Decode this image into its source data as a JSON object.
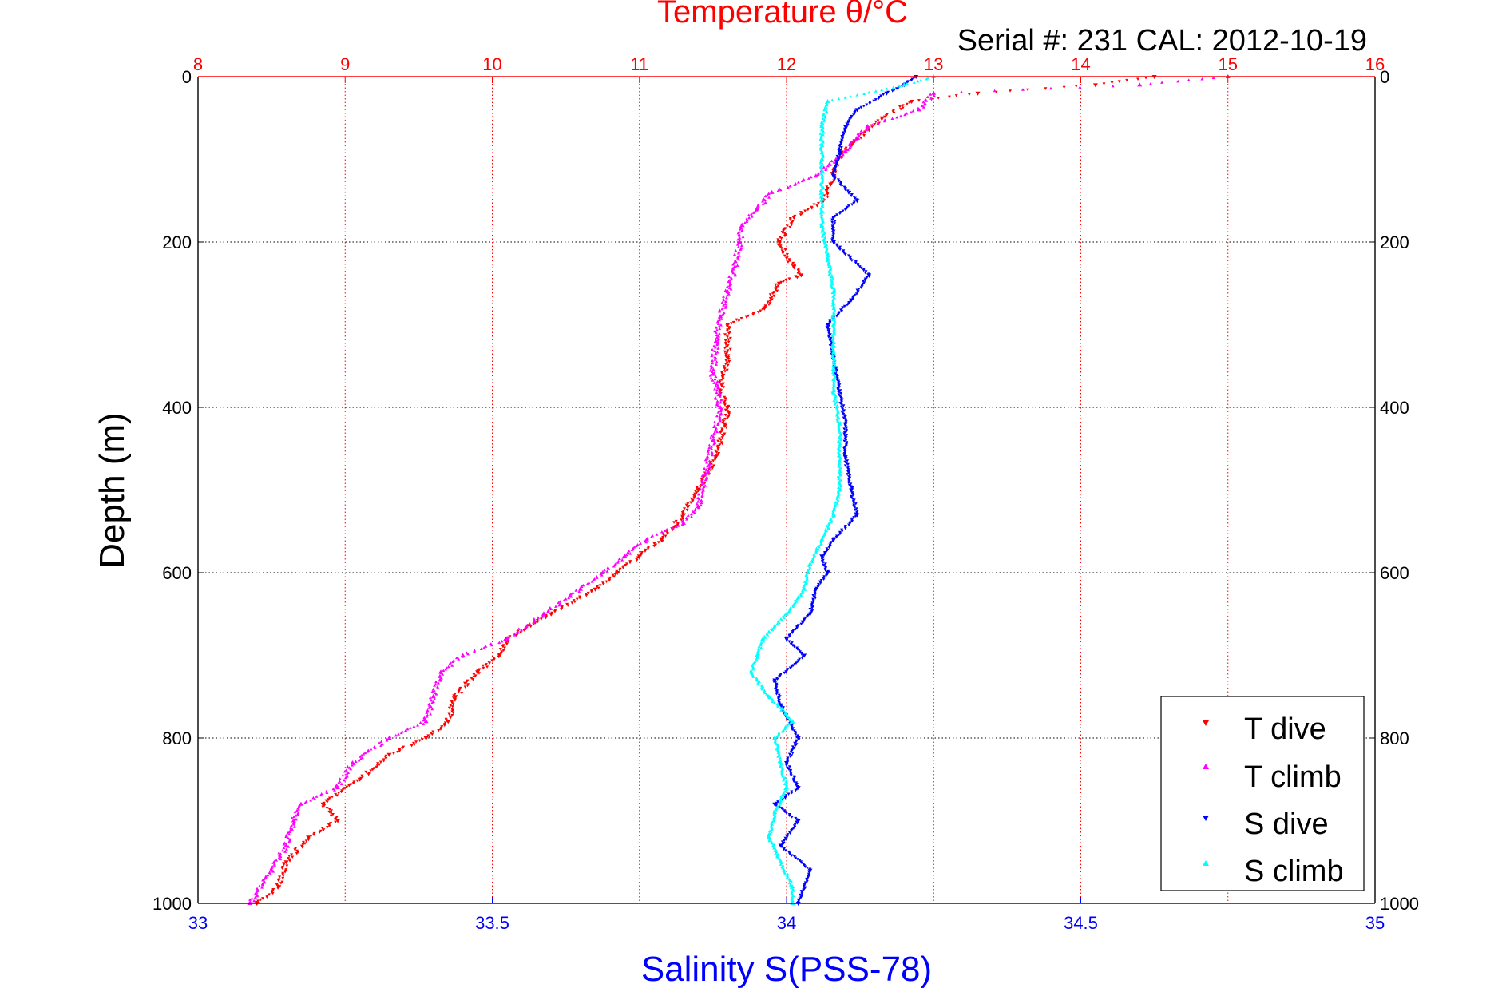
{
  "chart_data": {
    "type": "scatter",
    "title": "Temperature θ/°C",
    "subtitle": "Serial #: 231  CAL: 2012-10-19",
    "ylabel": "Depth (m)",
    "xlabel": "Salinity S(PSS-78)",
    "grid": true,
    "legend_position": "bottom-right",
    "ylim": [
      0,
      1000
    ],
    "y_reversed": true,
    "yticks": [
      0,
      200,
      400,
      600,
      800,
      1000
    ],
    "temperature_axis": {
      "position": "top",
      "xlim": [
        8,
        16
      ],
      "ticks": [
        8,
        9,
        10,
        11,
        12,
        13,
        14,
        15,
        16
      ],
      "color": "#ff0000"
    },
    "salinity_axis": {
      "position": "bottom",
      "xlim": [
        33,
        35
      ],
      "ticks": [
        "33",
        "33.5",
        "34",
        "34.5",
        "35"
      ],
      "color": "#0000ff"
    },
    "series": [
      {
        "name": "T dive",
        "axis": "temperature",
        "color": "#ff0000",
        "marker": "triangle-down",
        "depth": [
          0,
          10,
          20,
          30,
          50,
          80,
          100,
          130,
          150,
          170,
          200,
          230,
          240,
          250,
          280,
          300,
          340,
          380,
          400,
          420,
          460,
          500,
          530,
          560,
          580,
          600,
          620,
          650,
          680,
          700,
          720,
          750,
          780,
          800,
          820,
          850,
          880,
          900,
          920,
          950,
          980,
          1000
        ],
        "temperature": [
          14.5,
          14.1,
          13.3,
          12.85,
          12.65,
          12.45,
          12.35,
          12.3,
          12.25,
          12.05,
          11.95,
          12.05,
          12.1,
          11.95,
          11.85,
          11.6,
          11.6,
          11.55,
          11.6,
          11.58,
          11.52,
          11.4,
          11.3,
          11.15,
          11.0,
          10.85,
          10.7,
          10.4,
          10.1,
          10.05,
          9.9,
          9.75,
          9.7,
          9.55,
          9.3,
          9.1,
          8.85,
          8.95,
          8.75,
          8.6,
          8.55,
          8.4
        ]
      },
      {
        "name": "T climb",
        "axis": "temperature",
        "color": "#ff00ff",
        "marker": "triangle-up",
        "depth": [
          0,
          10,
          20,
          40,
          60,
          90,
          120,
          140,
          160,
          180,
          200,
          230,
          260,
          290,
          320,
          360,
          400,
          440,
          480,
          520,
          540,
          560,
          580,
          600,
          620,
          650,
          680,
          700,
          720,
          750,
          780,
          800,
          830,
          860,
          880,
          900,
          930,
          960,
          1000
        ],
        "temperature": [
          15.0,
          14.4,
          13.0,
          12.9,
          12.55,
          12.4,
          12.2,
          11.9,
          11.8,
          11.7,
          11.68,
          11.65,
          11.6,
          11.55,
          11.52,
          11.5,
          11.55,
          11.5,
          11.45,
          11.4,
          11.3,
          11.05,
          10.9,
          10.75,
          10.6,
          10.35,
          10.1,
          9.8,
          9.65,
          9.6,
          9.55,
          9.3,
          9.05,
          8.95,
          8.7,
          8.65,
          8.6,
          8.5,
          8.35
        ]
      },
      {
        "name": "S dive",
        "axis": "salinity",
        "color": "#0000ff",
        "marker": "triangle-down",
        "depth": [
          0,
          10,
          20,
          40,
          60,
          90,
          120,
          150,
          170,
          200,
          240,
          270,
          300,
          340,
          380,
          420,
          460,
          500,
          530,
          560,
          580,
          600,
          620,
          650,
          680,
          700,
          730,
          760,
          800,
          830,
          860,
          880,
          900,
          930,
          960,
          1000
        ],
        "salinity": [
          34.22,
          34.2,
          34.17,
          34.12,
          34.1,
          34.09,
          34.08,
          34.12,
          34.08,
          34.08,
          34.14,
          34.11,
          34.07,
          34.08,
          34.09,
          34.1,
          34.1,
          34.11,
          34.12,
          34.08,
          34.06,
          34.07,
          34.05,
          34.04,
          34.0,
          34.03,
          33.98,
          33.99,
          34.02,
          34.0,
          34.02,
          33.98,
          34.02,
          33.99,
          34.04,
          34.02
        ]
      },
      {
        "name": "S climb",
        "axis": "salinity",
        "color": "#00ffff",
        "marker": "triangle-up",
        "depth": [
          0,
          10,
          30,
          60,
          100,
          140,
          180,
          220,
          260,
          300,
          340,
          380,
          420,
          460,
          500,
          530,
          560,
          590,
          620,
          650,
          680,
          700,
          720,
          750,
          780,
          800,
          830,
          860,
          890,
          920,
          950,
          980,
          1000
        ],
        "salinity": [
          34.25,
          34.2,
          34.07,
          34.06,
          34.06,
          34.06,
          34.06,
          34.07,
          34.08,
          34.08,
          34.08,
          34.08,
          34.09,
          34.09,
          34.09,
          34.08,
          34.06,
          34.04,
          34.03,
          34.0,
          33.96,
          33.95,
          33.94,
          33.97,
          34.01,
          33.98,
          33.99,
          34.0,
          33.98,
          33.97,
          33.99,
          34.01,
          34.01
        ]
      }
    ]
  }
}
